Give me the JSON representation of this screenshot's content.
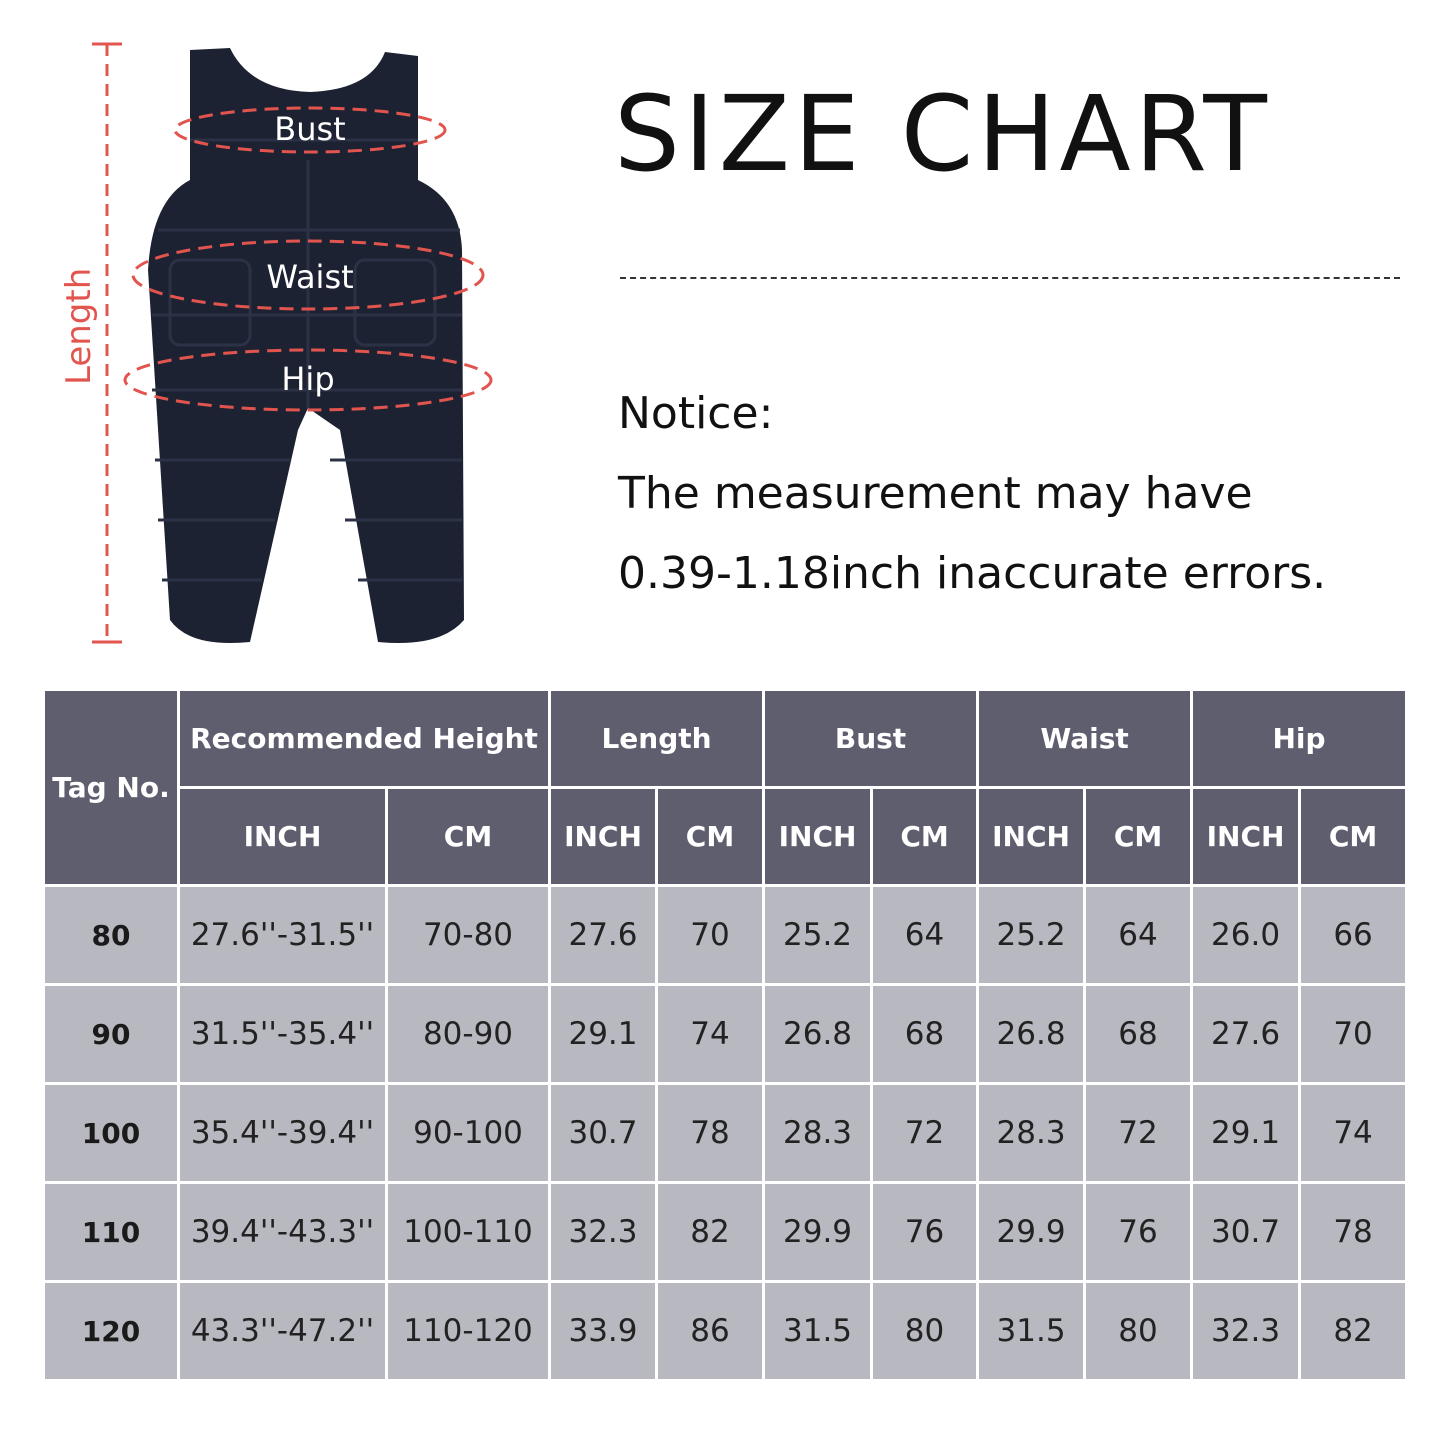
{
  "title": "SIZE CHART",
  "notice": {
    "heading": "Notice:",
    "line1": "The measurement may have",
    "line2": "0.39-1.18inch inaccurate errors."
  },
  "diagram": {
    "labels": {
      "bust": "Bust",
      "waist": "Waist",
      "hip": "Hip",
      "length": "Length"
    },
    "garment_color": "#1d2233",
    "marker_color": "#e2554f"
  },
  "table": {
    "colors": {
      "header": "#5f5e6f",
      "body": "#b8b8c0"
    },
    "tag_header": "Tag No.",
    "groups": [
      "Recommended Height",
      "Length",
      "Bust",
      "Waist",
      "Hip"
    ],
    "units": [
      "INCH",
      "CM",
      "INCH",
      "CM",
      "INCH",
      "CM",
      "INCH",
      "CM",
      "INCH",
      "CM"
    ],
    "rows": [
      [
        "80",
        "27.6''-31.5''",
        "70-80",
        "27.6",
        "70",
        "25.2",
        "64",
        "25.2",
        "64",
        "26.0",
        "66"
      ],
      [
        "90",
        "31.5''-35.4''",
        "80-90",
        "29.1",
        "74",
        "26.8",
        "68",
        "26.8",
        "68",
        "27.6",
        "70"
      ],
      [
        "100",
        "35.4''-39.4''",
        "90-100",
        "30.7",
        "78",
        "28.3",
        "72",
        "28.3",
        "72",
        "29.1",
        "74"
      ],
      [
        "110",
        "39.4''-43.3''",
        "100-110",
        "32.3",
        "82",
        "29.9",
        "76",
        "29.9",
        "76",
        "30.7",
        "78"
      ],
      [
        "120",
        "43.3''-47.2''",
        "110-120",
        "33.9",
        "86",
        "31.5",
        "80",
        "31.5",
        "80",
        "32.3",
        "82"
      ]
    ]
  }
}
